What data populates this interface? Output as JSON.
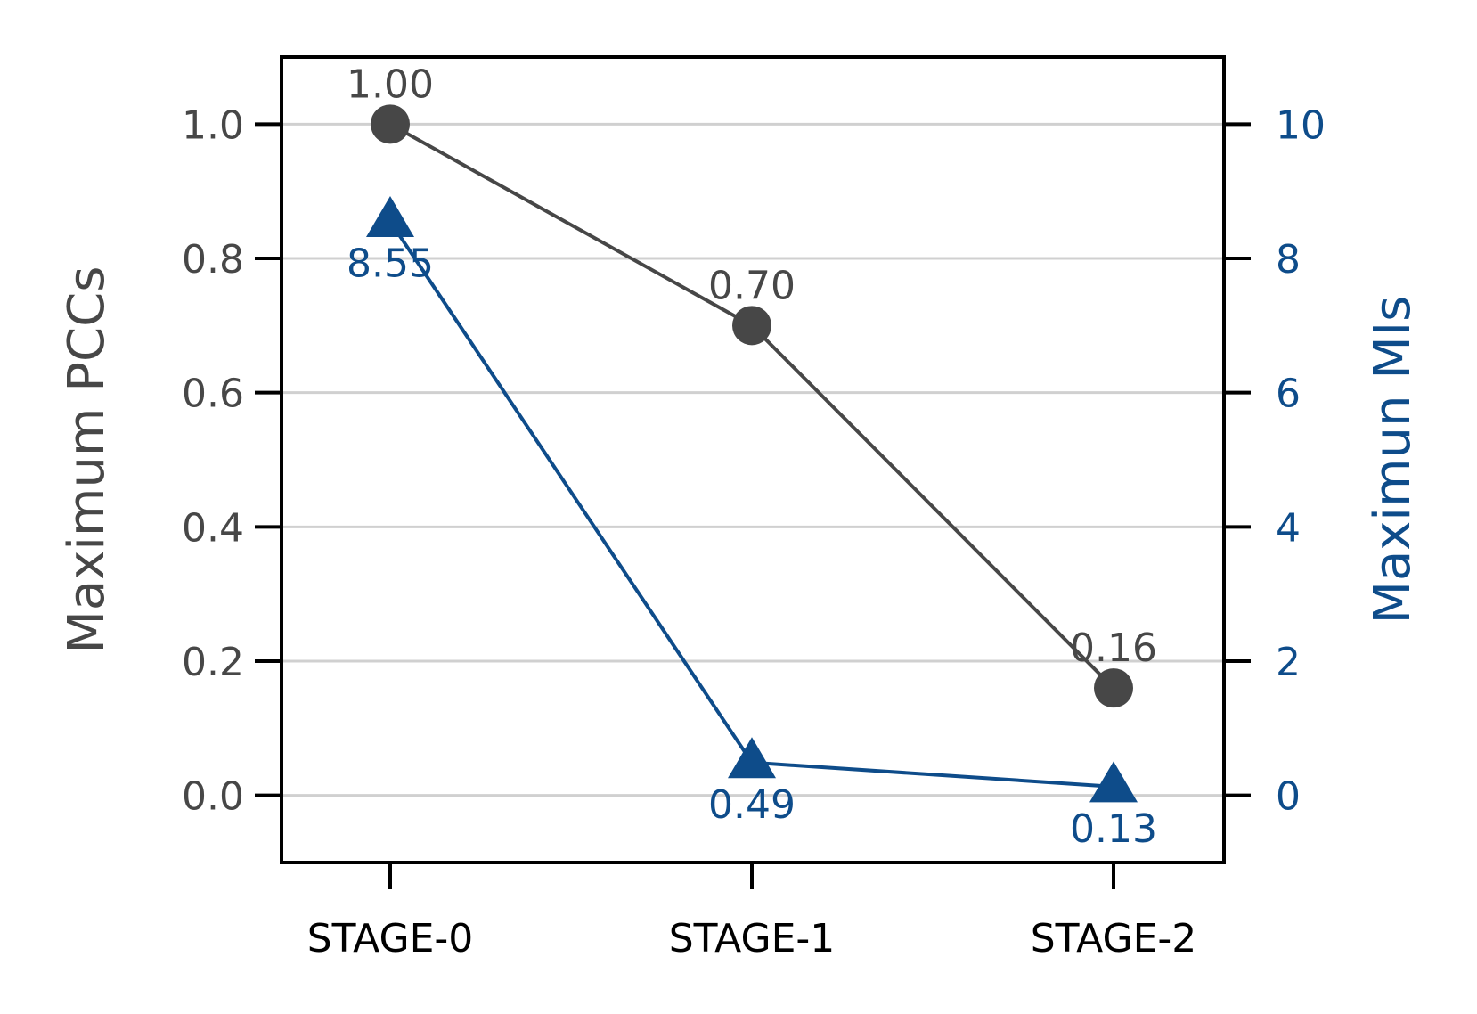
{
  "chart_data": {
    "type": "line",
    "categories": [
      "STAGE-0",
      "STAGE-1",
      "STAGE-2"
    ],
    "left_axis": {
      "label": "Maximum PCCs",
      "ylim": [
        -0.1,
        1.1
      ],
      "ticks": [
        0.0,
        0.2,
        0.4,
        0.6,
        0.8,
        1.0
      ],
      "tick_labels": [
        "0.0",
        "0.2",
        "0.4",
        "0.6",
        "0.8",
        "1.0"
      ],
      "color": "#474747"
    },
    "right_axis": {
      "label": "Maximun MIs",
      "ylim": [
        -1,
        11
      ],
      "ticks": [
        0,
        2,
        4,
        6,
        8,
        10
      ],
      "tick_labels": [
        "0",
        "2",
        "4",
        "6",
        "8",
        "10"
      ],
      "color": "#0e4c8a"
    },
    "series": [
      {
        "axis": "left",
        "values": [
          1.0,
          0.7,
          0.16
        ],
        "labels": [
          "1.00",
          "0.70",
          "0.16"
        ],
        "marker": "circle",
        "label_position": "above",
        "color": "#474747"
      },
      {
        "axis": "right",
        "values": [
          8.55,
          0.49,
          0.13
        ],
        "labels": [
          "8.55",
          "0.49",
          "0.13"
        ],
        "marker": "triangle",
        "label_position": "below",
        "color": "#0e4c8a"
      }
    ],
    "grid": "horizontal",
    "legend": "none"
  }
}
